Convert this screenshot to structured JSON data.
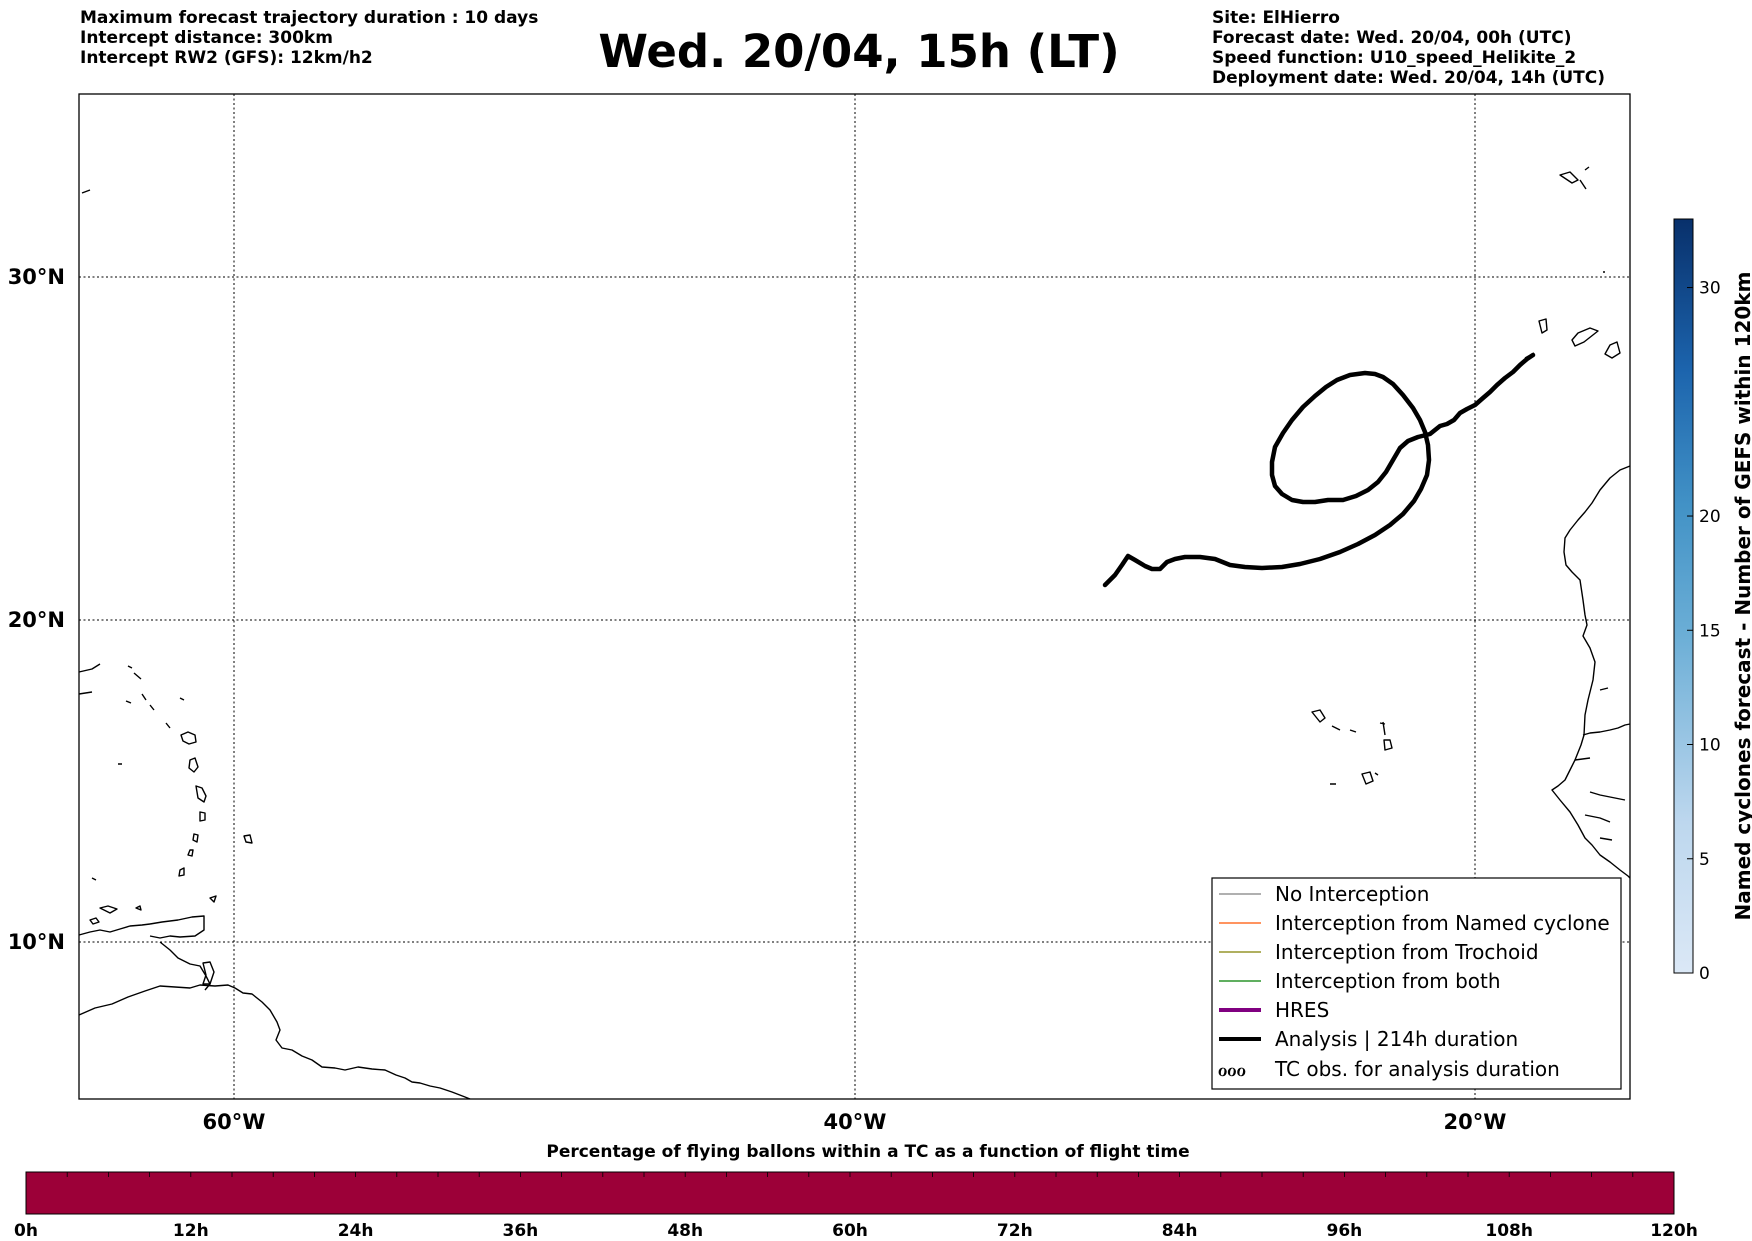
{
  "header_left": [
    "Maximum forecast trajectory duration : 10 days",
    "Intercept distance: 300km",
    "Intercept RW2 (GFS):  12km/h2"
  ],
  "title": "Wed. 20/04, 15h (LT)",
  "header_right": [
    "Site: ElHierro",
    "Forecast date: Wed. 20/04, 00h (UTC)",
    "Speed function: U10_speed_Helikite_2",
    "Deployment date: Wed. 20/04, 14h (UTC)"
  ],
  "map": {
    "lon_range": [
      -65,
      15
    ],
    "lat_range": [
      5,
      34.3
    ],
    "lon_ticks": [
      "60°W",
      "40°W",
      "20°W"
    ],
    "lat_ticks": [
      "30°N",
      "20°N",
      "10°N"
    ],
    "gridlines": true
  },
  "legend": [
    {
      "label": "No Interception",
      "color": "#808080",
      "style": "line"
    },
    {
      "label": "Interception from Named cyclone",
      "color": "#ff5500",
      "style": "line"
    },
    {
      "label": "Interception from Trochoid",
      "color": "#808000",
      "style": "line"
    },
    {
      "label": "Interception from both",
      "color": "#007f00",
      "style": "line"
    },
    {
      "label": "HRES",
      "color": "#800080",
      "style": "thick"
    },
    {
      "label": "Analysis | 214h duration",
      "color": "#000000",
      "style": "thick"
    },
    {
      "label": "TC obs. for analysis duration",
      "color": "#000000",
      "style": "symbols",
      "symbol": "ℴℴℴ"
    }
  ],
  "colorbar": {
    "label": "Named cyclones forecast - Number of GEFS within 120km",
    "ticks": [
      "0",
      "5",
      "10",
      "15",
      "20",
      "30"
    ],
    "tick_values": [
      0,
      5,
      10,
      15,
      20,
      30
    ],
    "max": 33
  },
  "bottom_bar": {
    "title": "Percentage of flying ballons within a TC as a function of flight time",
    "ticks": [
      "0h",
      "12h",
      "24h",
      "36h",
      "48h",
      "60h",
      "72h",
      "84h",
      "96h",
      "108h",
      "120h"
    ],
    "color": "#9c0038"
  }
}
